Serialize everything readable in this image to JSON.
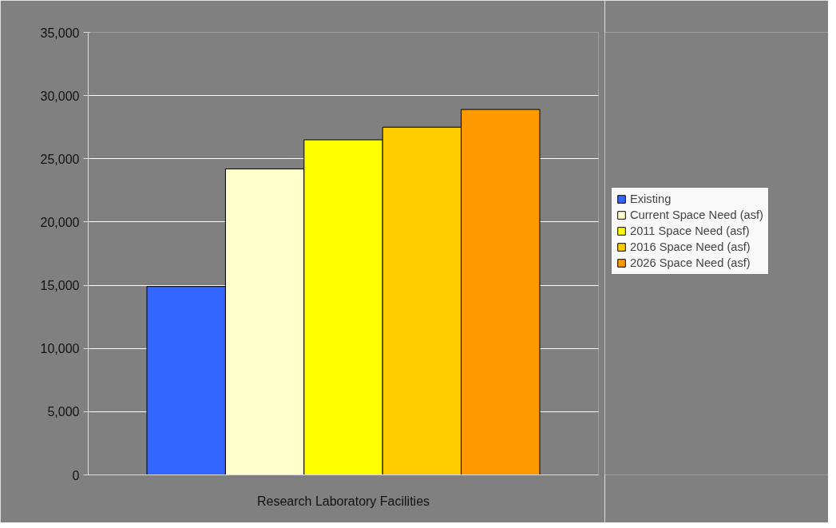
{
  "chart_data": {
    "type": "bar",
    "categories": [
      "Research Laboratory Facilities"
    ],
    "series": [
      {
        "name": "Existing",
        "color": "#3366ff",
        "values": [
          14900
        ]
      },
      {
        "name": "Current Space Need (asf)",
        "color": "#ffffcc",
        "values": [
          24200
        ]
      },
      {
        "name": "2011 Space Need (asf)",
        "color": "#ffff00",
        "values": [
          26500
        ]
      },
      {
        "name": "2016 Space Need (asf)",
        "color": "#ffcc00",
        "values": [
          27500
        ]
      },
      {
        "name": "2026 Space Need (asf)",
        "color": "#ff9900",
        "values": [
          28900
        ]
      }
    ],
    "ylim": [
      0,
      35000
    ],
    "yticks": [
      {
        "value": 0,
        "label": "0"
      },
      {
        "value": 5000,
        "label": "5,000"
      },
      {
        "value": 10000,
        "label": "10,000"
      },
      {
        "value": 15000,
        "label": "15,000"
      },
      {
        "value": 20000,
        "label": "20,000"
      },
      {
        "value": 25000,
        "label": "25,000"
      },
      {
        "value": 30000,
        "label": "30,000"
      },
      {
        "value": 35000,
        "label": "35,000"
      }
    ],
    "grid": "y",
    "legend": "right"
  }
}
